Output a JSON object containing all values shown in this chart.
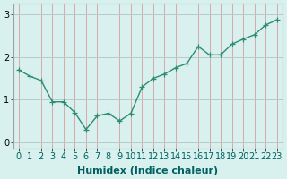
{
  "x": [
    0,
    1,
    2,
    3,
    4,
    5,
    6,
    7,
    8,
    9,
    10,
    11,
    12,
    13,
    14,
    15,
    16,
    17,
    18,
    19,
    20,
    21,
    22,
    23
  ],
  "y": [
    1.7,
    1.55,
    1.45,
    0.95,
    0.95,
    0.7,
    0.3,
    0.62,
    0.68,
    0.5,
    0.68,
    1.3,
    1.5,
    1.6,
    1.75,
    1.85,
    2.25,
    2.05,
    2.05,
    2.3,
    2.42,
    2.52,
    2.75,
    2.87
  ],
  "line_color": "#2e8b74",
  "marker": "+",
  "marker_size": 4,
  "bg_color": "#d8f0ee",
  "grid_color_x": "#d8a8a8",
  "grid_color_y": "#b8c8c8",
  "xlabel": "Humidex (Indice chaleur)",
  "xlabel_fontsize": 8,
  "tick_fontsize": 7,
  "ylim": [
    -0.15,
    3.25
  ],
  "xlim": [
    -0.5,
    23.5
  ],
  "yticks": [
    0,
    1,
    2,
    3
  ],
  "xticks": [
    0,
    1,
    2,
    3,
    4,
    5,
    6,
    7,
    8,
    9,
    10,
    11,
    12,
    13,
    14,
    15,
    16,
    17,
    18,
    19,
    20,
    21,
    22,
    23
  ],
  "linewidth": 1.0,
  "spine_color": "#a0a0a0"
}
